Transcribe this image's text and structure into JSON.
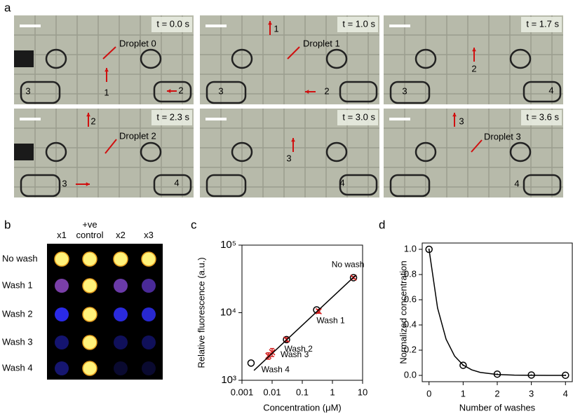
{
  "panel_labels": [
    "a",
    "b",
    "c",
    "d"
  ],
  "panel_a": {
    "frames": [
      {
        "time": "t = 0.0 s",
        "labels": [
          "Droplet 0",
          "3",
          "1",
          "2"
        ]
      },
      {
        "time": "t = 1.0 s",
        "labels": [
          "1",
          "Droplet 1",
          "3",
          "2"
        ]
      },
      {
        "time": "t = 1.7 s",
        "labels": [
          "2",
          "3",
          "4"
        ]
      },
      {
        "time": "t = 2.3 s",
        "labels": [
          "2",
          "Droplet 2",
          "3",
          "4"
        ]
      },
      {
        "time": "t = 3.0 s",
        "labels": [
          "3",
          "4"
        ]
      },
      {
        "time": "t = 3.6 s",
        "labels": [
          "3",
          "Droplet 3",
          "4"
        ]
      }
    ]
  },
  "panel_b": {
    "columns": [
      "x1",
      "+ve control",
      "x2",
      "x3"
    ],
    "rows": [
      "No wash",
      "Wash 1",
      "Wash 2",
      "Wash 3",
      "Wash 4"
    ]
  },
  "chart_data": [
    {
      "type": "scatter",
      "xlabel": "Concentration (μM)",
      "ylabel": "Relative fluorescence (a.u.)",
      "xscale": "log",
      "yscale": "log",
      "xlim": [
        0.001,
        10
      ],
      "xticks": [
        0.001,
        0.01,
        0.1,
        1,
        10
      ],
      "ylim": [
        1000,
        100000
      ],
      "yticks": [
        {
          "value": 1000,
          "label": "10³"
        },
        {
          "value": 10000,
          "label": "10⁴"
        },
        {
          "value": 100000,
          "label": "10⁵"
        }
      ],
      "series": [
        {
          "color": "#000000",
          "marker": "circle",
          "x": [
            0.002,
            0.03,
            0.3,
            5
          ],
          "values": [
            1800,
            4000,
            11000,
            33000
          ]
        },
        {
          "color": "#d42020",
          "marker": "cross",
          "x": [
            5,
            0.35,
            0.03,
            0.01,
            0.0075
          ],
          "values": [
            33000,
            10500,
            4000,
            2600,
            2300
          ],
          "errors": [
            1200,
            700,
            250,
            350,
            250
          ],
          "point_labels": [
            "No wash",
            "Wash 1",
            "Wash 2",
            "Wash 3",
            "Wash 4"
          ]
        },
        {
          "color": "#000000",
          "marker": "none",
          "x": [
            0.0025,
            6
          ],
          "values": [
            1400,
            36000
          ]
        }
      ]
    },
    {
      "type": "line",
      "xlabel": "Number of washes",
      "ylabel": "Normalized concentration",
      "xlim": [
        -0.2,
        4.2
      ],
      "xticks": [
        0,
        1,
        2,
        3,
        4
      ],
      "ylim": [
        -0.05,
        1.05
      ],
      "yticks": [
        {
          "value": 0,
          "label": "0.0"
        },
        {
          "value": 0.2,
          "label": "0.2"
        },
        {
          "value": 0.4,
          "label": "0.4"
        },
        {
          "value": 0.6,
          "label": "0.6"
        },
        {
          "value": 0.8,
          "label": "0.8"
        },
        {
          "value": 1,
          "label": "1.0"
        }
      ],
      "series": [
        {
          "color": "#000000",
          "marker": "none",
          "x": [
            0,
            0.25,
            0.5,
            0.75,
            1,
            1.25,
            1.5,
            2,
            2.5,
            3,
            3.5,
            4
          ],
          "values": [
            1,
            0.535,
            0.287,
            0.153,
            0.082,
            0.044,
            0.0235,
            0.0067,
            0.0019,
            0.0006,
            0.0002,
            0.0001
          ]
        },
        {
          "color": "#000000",
          "marker": "circle-dot",
          "x": [
            0,
            1,
            2,
            3,
            4
          ],
          "values": [
            1,
            0.08,
            0.01,
            0.003,
            0.001
          ]
        }
      ]
    }
  ]
}
